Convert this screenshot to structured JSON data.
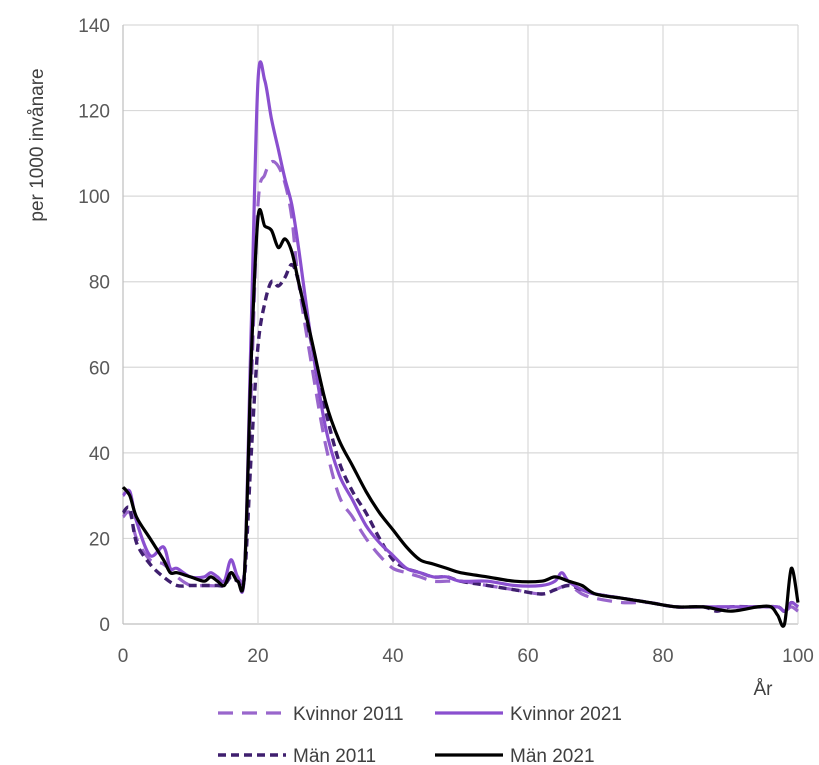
{
  "chart_data": {
    "type": "line",
    "title": "",
    "xlabel": "År",
    "ylabel": "per 1000 invånare",
    "xlim": [
      0,
      100
    ],
    "ylim": [
      0,
      140
    ],
    "xticks": [
      0,
      20,
      40,
      60,
      80,
      100
    ],
    "yticks": [
      0,
      20,
      40,
      60,
      80,
      100,
      120,
      140
    ],
    "grid": true,
    "legend_position": "bottom",
    "series": [
      {
        "name": "Kvinnor 2011",
        "color": "#9966cc",
        "dash": "long-dash",
        "points": [
          [
            0,
            25
          ],
          [
            1,
            26
          ],
          [
            2,
            20
          ],
          [
            4,
            15
          ],
          [
            6,
            14
          ],
          [
            8,
            11
          ],
          [
            10,
            9
          ],
          [
            12,
            9
          ],
          [
            14,
            9
          ],
          [
            15,
            10
          ],
          [
            16,
            12
          ],
          [
            17,
            11
          ],
          [
            18,
            13
          ],
          [
            19,
            55
          ],
          [
            20,
            98
          ],
          [
            21,
            105
          ],
          [
            22,
            108
          ],
          [
            23,
            107
          ],
          [
            24,
            103
          ],
          [
            25,
            95
          ],
          [
            26,
            80
          ],
          [
            28,
            60
          ],
          [
            30,
            42
          ],
          [
            32,
            30
          ],
          [
            34,
            25
          ],
          [
            36,
            20
          ],
          [
            38,
            16
          ],
          [
            40,
            13
          ],
          [
            42,
            12
          ],
          [
            44,
            11
          ],
          [
            46,
            10
          ],
          [
            48,
            10
          ],
          [
            50,
            10
          ],
          [
            54,
            9
          ],
          [
            58,
            8
          ],
          [
            62,
            7
          ],
          [
            64,
            8
          ],
          [
            66,
            9
          ],
          [
            68,
            7
          ],
          [
            70,
            6
          ],
          [
            74,
            5
          ],
          [
            78,
            5
          ],
          [
            82,
            4
          ],
          [
            86,
            4
          ],
          [
            90,
            4
          ],
          [
            94,
            4
          ],
          [
            97,
            4
          ],
          [
            98,
            3
          ],
          [
            99,
            4
          ],
          [
            100,
            3
          ]
        ]
      },
      {
        "name": "Kvinnor 2021",
        "color": "#8a4fcf",
        "dash": "solid",
        "points": [
          [
            0,
            30
          ],
          [
            1,
            31
          ],
          [
            2,
            24
          ],
          [
            4,
            16
          ],
          [
            6,
            18
          ],
          [
            7,
            13
          ],
          [
            8,
            13
          ],
          [
            10,
            11
          ],
          [
            12,
            11
          ],
          [
            13,
            12
          ],
          [
            14,
            11
          ],
          [
            15,
            10
          ],
          [
            16,
            15
          ],
          [
            17,
            11
          ],
          [
            18,
            12
          ],
          [
            19,
            70
          ],
          [
            20,
            127
          ],
          [
            21,
            127
          ],
          [
            22,
            118
          ],
          [
            23,
            111
          ],
          [
            24,
            104
          ],
          [
            25,
            98
          ],
          [
            26,
            88
          ],
          [
            28,
            65
          ],
          [
            30,
            46
          ],
          [
            32,
            35
          ],
          [
            34,
            29
          ],
          [
            36,
            23
          ],
          [
            38,
            19
          ],
          [
            40,
            16
          ],
          [
            42,
            13
          ],
          [
            44,
            12
          ],
          [
            46,
            11
          ],
          [
            48,
            11
          ],
          [
            50,
            10
          ],
          [
            54,
            10
          ],
          [
            58,
            9
          ],
          [
            62,
            9
          ],
          [
            64,
            10
          ],
          [
            65,
            12
          ],
          [
            66,
            10
          ],
          [
            68,
            8
          ],
          [
            70,
            7
          ],
          [
            74,
            6
          ],
          [
            78,
            5
          ],
          [
            82,
            4
          ],
          [
            86,
            4
          ],
          [
            90,
            4
          ],
          [
            94,
            4
          ],
          [
            97,
            4
          ],
          [
            98,
            3
          ],
          [
            99,
            5
          ],
          [
            100,
            4
          ]
        ]
      },
      {
        "name": "Män 2011",
        "color": "#3f1f6e",
        "dash": "short-dash",
        "points": [
          [
            0,
            26
          ],
          [
            1,
            27
          ],
          [
            2,
            19
          ],
          [
            4,
            14
          ],
          [
            6,
            11
          ],
          [
            8,
            9
          ],
          [
            10,
            9
          ],
          [
            12,
            9
          ],
          [
            14,
            9
          ],
          [
            15,
            9
          ],
          [
            16,
            11
          ],
          [
            17,
            10
          ],
          [
            18,
            11
          ],
          [
            19,
            40
          ],
          [
            20,
            65
          ],
          [
            21,
            75
          ],
          [
            22,
            80
          ],
          [
            23,
            79
          ],
          [
            24,
            81
          ],
          [
            25,
            84
          ],
          [
            26,
            80
          ],
          [
            28,
            65
          ],
          [
            30,
            50
          ],
          [
            32,
            38
          ],
          [
            34,
            31
          ],
          [
            36,
            26
          ],
          [
            38,
            20
          ],
          [
            40,
            15
          ],
          [
            42,
            13
          ],
          [
            44,
            12
          ],
          [
            46,
            11
          ],
          [
            48,
            11
          ],
          [
            50,
            10
          ],
          [
            54,
            9
          ],
          [
            58,
            8
          ],
          [
            62,
            7
          ],
          [
            64,
            8
          ],
          [
            66,
            9
          ],
          [
            68,
            8
          ],
          [
            70,
            7
          ],
          [
            74,
            6
          ],
          [
            78,
            5
          ],
          [
            82,
            4
          ],
          [
            86,
            4
          ],
          [
            88,
            3
          ],
          [
            90,
            4
          ],
          [
            94,
            4
          ],
          [
            97,
            4
          ],
          [
            98,
            3
          ],
          [
            99,
            5
          ],
          [
            100,
            4
          ]
        ]
      },
      {
        "name": "Män 2021",
        "color": "#000000",
        "dash": "solid",
        "points": [
          [
            0,
            32
          ],
          [
            1,
            30
          ],
          [
            2,
            25
          ],
          [
            4,
            20
          ],
          [
            6,
            15
          ],
          [
            7,
            12
          ],
          [
            8,
            12
          ],
          [
            10,
            11
          ],
          [
            12,
            10
          ],
          [
            13,
            11
          ],
          [
            14,
            10
          ],
          [
            15,
            9
          ],
          [
            16,
            12
          ],
          [
            17,
            10
          ],
          [
            18,
            12
          ],
          [
            19,
            62
          ],
          [
            20,
            95
          ],
          [
            21,
            93
          ],
          [
            22,
            92
          ],
          [
            23,
            88
          ],
          [
            24,
            90
          ],
          [
            25,
            87
          ],
          [
            26,
            80
          ],
          [
            28,
            66
          ],
          [
            30,
            52
          ],
          [
            32,
            43
          ],
          [
            34,
            37
          ],
          [
            36,
            31
          ],
          [
            38,
            26
          ],
          [
            40,
            22
          ],
          [
            42,
            18
          ],
          [
            44,
            15
          ],
          [
            46,
            14
          ],
          [
            48,
            13
          ],
          [
            50,
            12
          ],
          [
            54,
            11
          ],
          [
            58,
            10
          ],
          [
            62,
            10
          ],
          [
            64,
            11
          ],
          [
            66,
            10
          ],
          [
            68,
            9
          ],
          [
            70,
            7
          ],
          [
            74,
            6
          ],
          [
            78,
            5
          ],
          [
            82,
            4
          ],
          [
            86,
            4
          ],
          [
            90,
            3
          ],
          [
            94,
            4
          ],
          [
            96,
            4
          ],
          [
            97,
            2
          ],
          [
            98,
            0
          ],
          [
            99,
            13
          ],
          [
            100,
            5
          ]
        ]
      }
    ]
  }
}
